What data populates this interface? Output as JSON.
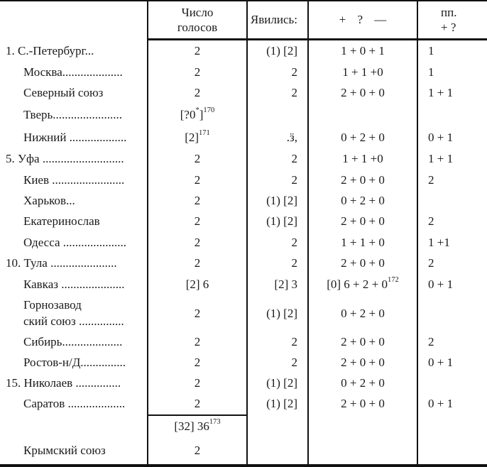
{
  "table": {
    "headers": {
      "votes": "Число\nголосов",
      "appeared": "Явились:",
      "tally": "+ ? —",
      "pp": "пп.\n+ ?"
    },
    "rows": [
      {
        "label": "1. С.-Петербург...",
        "numbered": true,
        "votes": "2",
        "appeared": "(1) [2]",
        "tally": "1 + 0 + 1",
        "pp": "1"
      },
      {
        "label": "Москва....................",
        "votes": "2",
        "appeared": "2",
        "tally": "1 + 1 +0",
        "pp": "1"
      },
      {
        "label": "Северный союз",
        "votes": "2",
        "appeared": "2",
        "tally": "2 + 0 + 0",
        "pp": "1 + 1"
      },
      {
        "label": "Тверь.......................",
        "votes": "[?0^{*}]^{170}",
        "appeared": "",
        "tally": "",
        "pp": ""
      },
      {
        "label": "Нижний ...................",
        "votes": "[2]^{171}",
        "appeared": ".ӟ,",
        "illegible": true,
        "tally": "0 + 2 + 0",
        "pp": "0 + 1"
      },
      {
        "label": "5. Уфа ...........................",
        "numbered": true,
        "votes": "2",
        "appeared": "2",
        "tally": "1 + 1 +0",
        "pp": "1 + 1"
      },
      {
        "label": "Киев ........................",
        "votes": "2",
        "appeared": "2",
        "tally": "2 + 0 + 0",
        "pp": "2"
      },
      {
        "label": "Харьков...",
        "votes": "2",
        "appeared": "(1) [2]",
        "tally": "0 + 2 + 0",
        "pp": ""
      },
      {
        "label": "Екатеринослав",
        "votes": "2",
        "appeared": "(1) [2]",
        "tally": "2 + 0 + 0",
        "pp": "2"
      },
      {
        "label": "Одесса .....................",
        "votes": "2",
        "appeared": "2",
        "tally": "1 + 1 + 0",
        "pp": "1 +1"
      },
      {
        "label": "10. Тула ......................",
        "numbered": true,
        "votes": "2",
        "appeared": "2",
        "tally": "2 + 0 + 0",
        "pp": "2"
      },
      {
        "label": "Кавказ .....................",
        "votes": "[2] 6",
        "appeared": "[2] 3",
        "tally": "[0] 6 + 2 + 0^{172}",
        "pp": "0 + 1"
      },
      {
        "label": "Горнозавод\nский союз ...............",
        "wrap": true,
        "votes": "2",
        "appeared": "(1) [2]",
        "tally": "0 + 2 + 0",
        "pp": ""
      },
      {
        "label": "Сибирь....................",
        "votes": "2",
        "appeared": "2",
        "tally": "2 + 0 + 0",
        "pp": "2"
      },
      {
        "label": "Ростов-н/Д...............",
        "votes": "2",
        "appeared": "2",
        "tally": "2 + 0 + 0",
        "pp": "0 + 1"
      },
      {
        "label": "15. Николаев ...............",
        "numbered": true,
        "votes": "2",
        "appeared": "(1) [2]",
        "tally": "0 + 2 + 0",
        "pp": ""
      },
      {
        "label": "Саратов ...................",
        "votes": "2",
        "appeared": "(1) [2]",
        "tally": "2 + 0 + 0",
        "pp": "0 + 1"
      },
      {
        "label": "",
        "total": true,
        "votes": "[32] 36^{173}",
        "appeared": "",
        "tally": "",
        "pp": ""
      },
      {
        "label": "Крымский союз",
        "votes": "2",
        "appeared": "",
        "tally": "",
        "pp": ""
      }
    ]
  }
}
